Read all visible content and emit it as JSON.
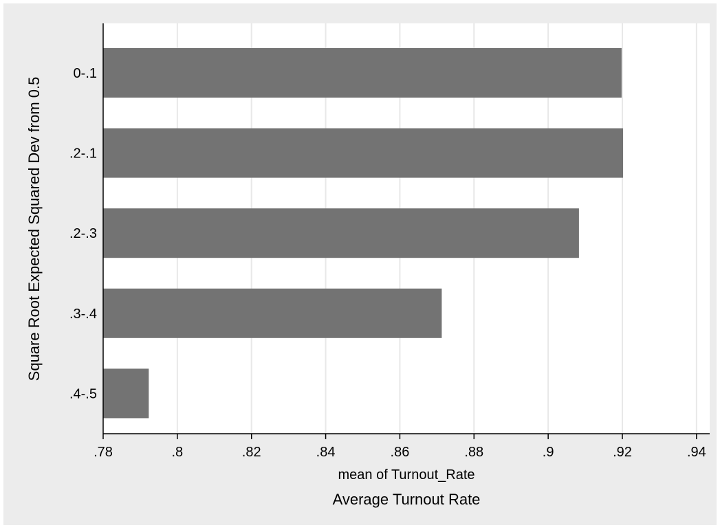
{
  "chart_data": {
    "type": "bar",
    "orientation": "horizontal",
    "categories": [
      "0-.1",
      ".2-.1",
      ".2-.3",
      ".3-.4",
      ".4-.5"
    ],
    "values": [
      0.9198,
      0.9202,
      0.9083,
      0.8713,
      0.7923
    ],
    "xlabel": "mean of Turnout_Rate",
    "note": "Average Turnout Rate",
    "ylabel": "Square Root Expected Squared Dev from 0.5",
    "xlim": [
      0.78,
      0.945
    ],
    "xticks": [
      0.78,
      0.8,
      0.82,
      0.84,
      0.86,
      0.88,
      0.9,
      0.92,
      0.94
    ],
    "xtick_labels": [
      ".78",
      ".8",
      ".82",
      ".84",
      ".86",
      ".88",
      ".9",
      ".92",
      ".94"
    ],
    "grid": true,
    "colors": {
      "bar": "#737373",
      "background": "#ececec",
      "plot_background": "#ffffff",
      "grid": "#e8e8e8",
      "axis": "#000000"
    }
  }
}
